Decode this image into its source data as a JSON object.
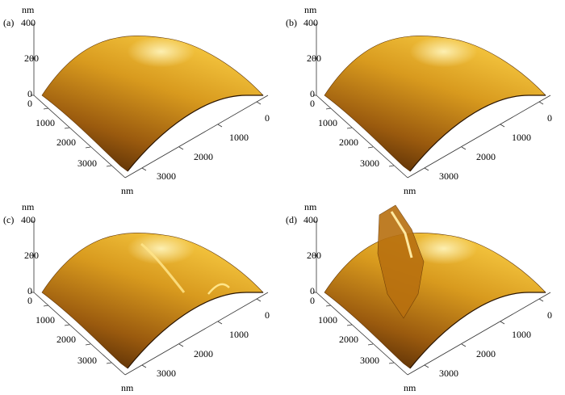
{
  "figure": {
    "panels": [
      {
        "label": "(a)",
        "z_unit": "nm",
        "z_ticks": [
          "400",
          "200",
          "0"
        ],
        "left_ticks": [
          "0",
          "1000",
          "2000",
          "3000"
        ],
        "right_ticks": [
          "0",
          "1000",
          "2000",
          "3000"
        ],
        "xy_unit": "nm"
      },
      {
        "label": "(b)",
        "z_unit": "nm",
        "z_ticks": [
          "400",
          "200",
          "0"
        ],
        "left_ticks": [
          "0",
          "1000",
          "2000",
          "3000"
        ],
        "right_ticks": [
          "0",
          "1000",
          "2000",
          "3000"
        ],
        "xy_unit": "nm"
      },
      {
        "label": "(c)",
        "z_unit": "nm",
        "z_ticks": [
          "400",
          "200",
          "0"
        ],
        "left_ticks": [
          "0",
          "1000",
          "2000",
          "3000"
        ],
        "right_ticks": [
          "0",
          "1000",
          "2000",
          "3000"
        ],
        "xy_unit": "nm"
      },
      {
        "label": "(d)",
        "z_unit": "nm",
        "z_ticks": [
          "400",
          "200",
          "0"
        ],
        "left_ticks": [
          "0",
          "1000",
          "2000",
          "3000"
        ],
        "right_ticks": [
          "0",
          "1000",
          "2000",
          "3000"
        ],
        "xy_unit": "nm"
      }
    ]
  }
}
